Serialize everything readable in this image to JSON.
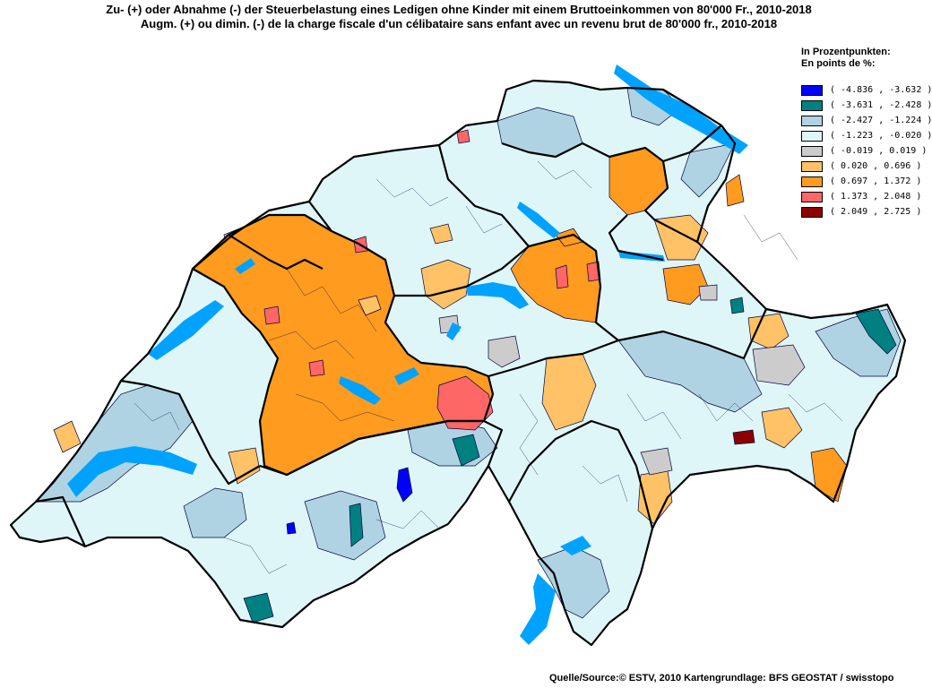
{
  "title_de": "Zu- (+) oder Abnahme (-) der Steuerbelastung eines Ledigen ohne Kinder mit einem Bruttoeinkommen von 80'000 Fr., 2010-2018",
  "title_fr": "Augm. (+) ou dimin. (-) de la charge fiscale d'un célibataire sans enfant avec un revenu brut de 80'000 fr., 2010-2018",
  "legend": {
    "heading_de": "In Prozentpunkten:",
    "heading_fr": "En points de %:",
    "classes": [
      {
        "label": "( -4.836 , -3.632 )",
        "color": "#0000ff"
      },
      {
        "label": "( -3.631 , -2.428 )",
        "color": "#008080"
      },
      {
        "label": "( -2.427 , -1.224 )",
        "color": "#afd3e2"
      },
      {
        "label": "( -1.223 , -0.020 )",
        "color": "#dff6f8"
      },
      {
        "label": "( -0.019 , 0.019 )",
        "color": "#cccccc"
      },
      {
        "label": "( 0.020 , 0.696 )",
        "color": "#ffc266"
      },
      {
        "label": "( 0.697 , 1.372 )",
        "color": "#ff9b1e"
      },
      {
        "label": "( 1.373 , 2.048 )",
        "color": "#ff6666"
      },
      {
        "label": "( 2.049 , 2.725 )",
        "color": "#8b0000"
      }
    ]
  },
  "colors": {
    "lake": "#00a2ff",
    "canton_border": "#000000",
    "municipality_border": "#00003c"
  },
  "source": "Quelle/Source:© ESTV, 2010 Kartengrundlage: BFS GEOSTAT / swisstopo"
}
